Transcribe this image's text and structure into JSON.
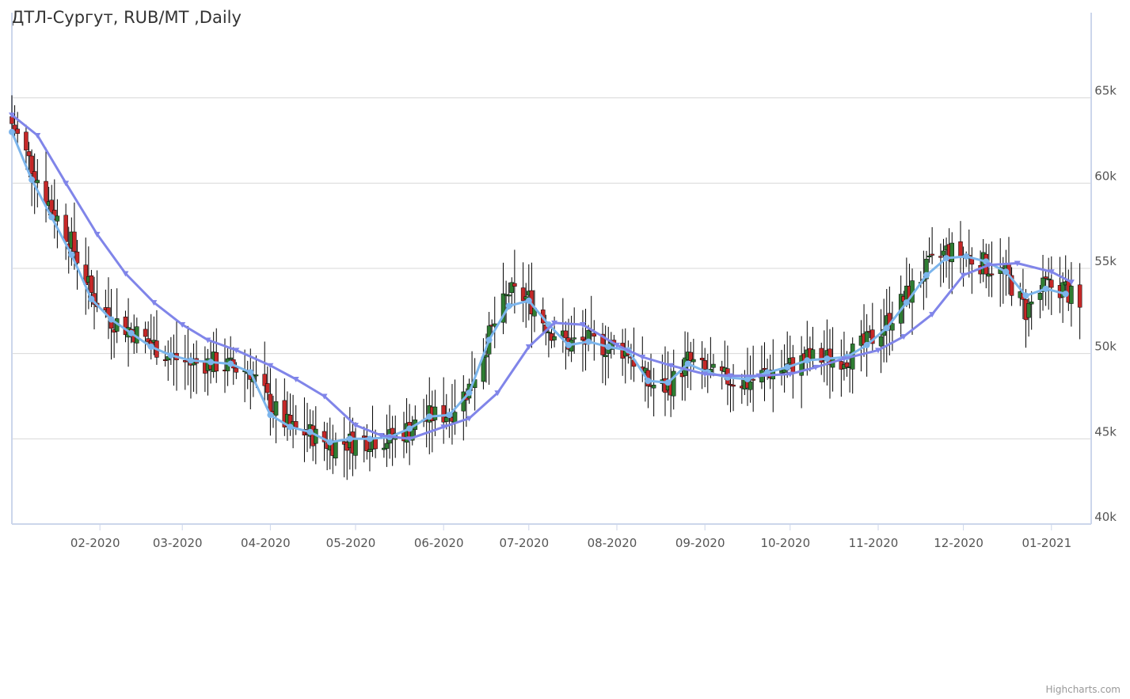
{
  "chart_data": {
    "type": "candlestick",
    "title": "ДТЛ-Сургут, RUB/MT ,Daily",
    "xlabel": "",
    "ylabel": "",
    "x_range": [
      "2020-01-01",
      "2021-01-15"
    ],
    "ylim": [
      40000,
      70000
    ],
    "y_ticks": [
      {
        "value": 40000,
        "label": "40k"
      },
      {
        "value": 45000,
        "label": "45k"
      },
      {
        "value": 50000,
        "label": "50k"
      },
      {
        "value": 55000,
        "label": "55k"
      },
      {
        "value": 60000,
        "label": "60k"
      },
      {
        "value": 65000,
        "label": "65k"
      }
    ],
    "x_ticks": [
      {
        "date": "2020-02-01",
        "label": "02-2020"
      },
      {
        "date": "2020-03-01",
        "label": "03-2020"
      },
      {
        "date": "2020-04-01",
        "label": "04-2020"
      },
      {
        "date": "2020-05-01",
        "label": "05-2020"
      },
      {
        "date": "2020-06-01",
        "label": "06-2020"
      },
      {
        "date": "2020-07-01",
        "label": "07-2020"
      },
      {
        "date": "2020-08-01",
        "label": "08-2020"
      },
      {
        "date": "2020-09-01",
        "label": "09-2020"
      },
      {
        "date": "2020-10-01",
        "label": "10-2020"
      },
      {
        "date": "2020-11-01",
        "label": "11-2020"
      },
      {
        "date": "2020-12-01",
        "label": "12-2020"
      },
      {
        "date": "2021-01-01",
        "label": "01-2021"
      }
    ],
    "grid": true,
    "legend": "none",
    "colors": {
      "up": "#2e7d32",
      "down": "#c62828",
      "wick": "#000000",
      "fast_ma": "#7cb5ec",
      "slow_ma": "#8085e9",
      "grid": "#d8d8d8",
      "axis": "#ccd6eb"
    },
    "series": [
      {
        "type": "moving-average",
        "marker": "circle",
        "points": [
          [
            "2020-01-01",
            63000
          ],
          [
            "2020-01-08",
            60200
          ],
          [
            "2020-01-15",
            58000
          ],
          [
            "2020-01-22",
            55800
          ],
          [
            "2020-01-29",
            53200
          ],
          [
            "2020-02-05",
            52000
          ],
          [
            "2020-02-12",
            51200
          ],
          [
            "2020-02-19",
            50400
          ],
          [
            "2020-02-26",
            49900
          ],
          [
            "2020-03-04",
            49600
          ],
          [
            "2020-03-11",
            49500
          ],
          [
            "2020-03-18",
            49400
          ],
          [
            "2020-03-25",
            48900
          ],
          [
            "2020-04-01",
            46400
          ],
          [
            "2020-04-08",
            45700
          ],
          [
            "2020-04-15",
            45400
          ],
          [
            "2020-04-22",
            44800
          ],
          [
            "2020-04-29",
            45000
          ],
          [
            "2020-05-06",
            45000
          ],
          [
            "2020-05-13",
            45100
          ],
          [
            "2020-05-20",
            45600
          ],
          [
            "2020-05-27",
            46300
          ],
          [
            "2020-06-03",
            46400
          ],
          [
            "2020-06-10",
            47700
          ],
          [
            "2020-06-17",
            50800
          ],
          [
            "2020-06-24",
            52800
          ],
          [
            "2020-07-01",
            53100
          ],
          [
            "2020-07-08",
            51700
          ],
          [
            "2020-07-15",
            50500
          ],
          [
            "2020-07-22",
            50700
          ],
          [
            "2020-07-29",
            50400
          ],
          [
            "2020-08-05",
            50200
          ],
          [
            "2020-08-12",
            48400
          ],
          [
            "2020-08-19",
            48300
          ],
          [
            "2020-08-26",
            49400
          ],
          [
            "2020-09-02",
            48900
          ],
          [
            "2020-09-09",
            48600
          ],
          [
            "2020-09-16",
            48500
          ],
          [
            "2020-09-23",
            48900
          ],
          [
            "2020-09-30",
            49200
          ],
          [
            "2020-10-07",
            49600
          ],
          [
            "2020-10-14",
            49700
          ],
          [
            "2020-10-21",
            49800
          ],
          [
            "2020-10-28",
            50500
          ],
          [
            "2020-11-04",
            51500
          ],
          [
            "2020-11-11",
            53000
          ],
          [
            "2020-11-18",
            54600
          ],
          [
            "2020-11-25",
            55600
          ],
          [
            "2020-12-02",
            55700
          ],
          [
            "2020-12-09",
            55400
          ],
          [
            "2020-12-16",
            54800
          ],
          [
            "2020-12-23",
            53400
          ],
          [
            "2020-12-30",
            53800
          ],
          [
            "2021-01-06",
            53500
          ]
        ]
      },
      {
        "type": "moving-average",
        "marker": "triangle",
        "points": [
          [
            "2020-01-01",
            64000
          ],
          [
            "2020-01-10",
            62800
          ],
          [
            "2020-01-20",
            60000
          ],
          [
            "2020-01-31",
            57000
          ],
          [
            "2020-02-10",
            54700
          ],
          [
            "2020-02-20",
            53000
          ],
          [
            "2020-03-01",
            51700
          ],
          [
            "2020-03-10",
            50800
          ],
          [
            "2020-03-20",
            50200
          ],
          [
            "2020-04-01",
            49300
          ],
          [
            "2020-04-10",
            48500
          ],
          [
            "2020-04-20",
            47500
          ],
          [
            "2020-05-01",
            45800
          ],
          [
            "2020-05-10",
            45200
          ],
          [
            "2020-05-20",
            45000
          ],
          [
            "2020-06-01",
            45700
          ],
          [
            "2020-06-10",
            46200
          ],
          [
            "2020-06-20",
            47700
          ],
          [
            "2020-07-01",
            50400
          ],
          [
            "2020-07-10",
            51800
          ],
          [
            "2020-07-20",
            51700
          ],
          [
            "2020-08-01",
            50500
          ],
          [
            "2020-08-10",
            49800
          ],
          [
            "2020-08-20",
            49300
          ],
          [
            "2020-09-01",
            48800
          ],
          [
            "2020-09-10",
            48700
          ],
          [
            "2020-09-20",
            48700
          ],
          [
            "2020-10-01",
            48800
          ],
          [
            "2020-10-10",
            49200
          ],
          [
            "2020-10-20",
            49700
          ],
          [
            "2020-11-01",
            50200
          ],
          [
            "2020-11-10",
            51000
          ],
          [
            "2020-11-20",
            52300
          ],
          [
            "2020-12-01",
            54600
          ],
          [
            "2020-12-10",
            55200
          ],
          [
            "2020-12-20",
            55300
          ],
          [
            "2021-01-01",
            54800
          ],
          [
            "2021-01-08",
            54200
          ]
        ]
      }
    ],
    "ohlc_path": [
      [
        "2020-01-01",
        63500
      ],
      [
        "2020-01-08",
        61000
      ],
      [
        "2020-01-15",
        58500
      ],
      [
        "2020-01-22",
        56500
      ],
      [
        "2020-01-29",
        53500
      ],
      [
        "2020-02-05",
        52000
      ],
      [
        "2020-02-12",
        51400
      ],
      [
        "2020-02-19",
        50600
      ],
      [
        "2020-02-26",
        49800
      ],
      [
        "2020-03-04",
        49400
      ],
      [
        "2020-03-11",
        49500
      ],
      [
        "2020-03-18",
        49200
      ],
      [
        "2020-03-25",
        49000
      ],
      [
        "2020-04-01",
        47000
      ],
      [
        "2020-04-08",
        45600
      ],
      [
        "2020-04-15",
        45300
      ],
      [
        "2020-04-22",
        44700
      ],
      [
        "2020-04-29",
        44800
      ],
      [
        "2020-05-06",
        45000
      ],
      [
        "2020-05-13",
        45000
      ],
      [
        "2020-05-20",
        45600
      ],
      [
        "2020-05-27",
        46300
      ],
      [
        "2020-06-03",
        46500
      ],
      [
        "2020-06-10",
        48000
      ],
      [
        "2020-06-17",
        51000
      ],
      [
        "2020-06-24",
        53600
      ],
      [
        "2020-07-01",
        53200
      ],
      [
        "2020-07-08",
        51500
      ],
      [
        "2020-07-15",
        50600
      ],
      [
        "2020-07-22",
        50700
      ],
      [
        "2020-07-29",
        50400
      ],
      [
        "2020-08-05",
        50200
      ],
      [
        "2020-08-12",
        48200
      ],
      [
        "2020-08-19",
        48000
      ],
      [
        "2020-08-26",
        49600
      ],
      [
        "2020-09-02",
        48800
      ],
      [
        "2020-09-09",
        48500
      ],
      [
        "2020-09-16",
        48300
      ],
      [
        "2020-09-23",
        48900
      ],
      [
        "2020-09-30",
        49200
      ],
      [
        "2020-10-07",
        49700
      ],
      [
        "2020-10-14",
        49700
      ],
      [
        "2020-10-21",
        49800
      ],
      [
        "2020-10-28",
        50600
      ],
      [
        "2020-11-04",
        51800
      ],
      [
        "2020-11-11",
        53400
      ],
      [
        "2020-11-18",
        54900
      ],
      [
        "2020-11-25",
        56000
      ],
      [
        "2020-12-02",
        55700
      ],
      [
        "2020-12-09",
        55200
      ],
      [
        "2020-12-16",
        54600
      ],
      [
        "2020-12-23",
        52500
      ],
      [
        "2020-12-30",
        54000
      ],
      [
        "2021-01-06",
        53800
      ],
      [
        "2021-01-11",
        52500
      ]
    ]
  },
  "credits": "Highcharts.com"
}
